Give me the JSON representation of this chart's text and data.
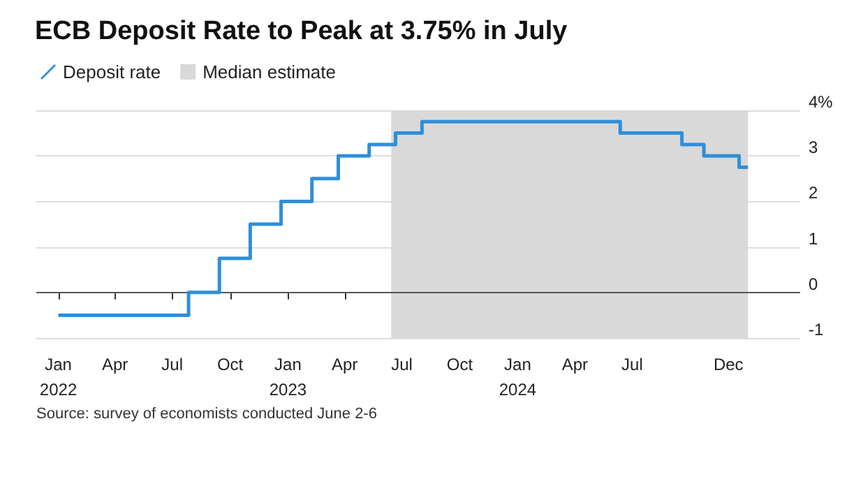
{
  "chart_data": {
    "type": "step",
    "title": "ECB Deposit Rate to Peak at 3.75% in July",
    "annotations": [
      "Source: survey of economists conducted June 2-6"
    ],
    "series": [
      {
        "name": "Deposit rate",
        "color": "#2f8fd8",
        "x": [
          "2022-01-01",
          "2022-07-27",
          "2022-09-14",
          "2022-11-02",
          "2022-12-21",
          "2023-02-08",
          "2023-03-22",
          "2023-05-10",
          "2023-06-21",
          "2023-08-02",
          "2024-06-12",
          "2024-09-18",
          "2024-10-23",
          "2024-12-18",
          "2025-01-01"
        ],
        "values": [
          -0.5,
          0,
          0.75,
          1.5,
          2,
          2.5,
          3,
          3.25,
          3.5,
          3.75,
          3.5,
          3.25,
          3,
          2.75,
          2.75
        ]
      }
    ],
    "bands": [
      {
        "axis": "x",
        "from": "2023-06-14",
        "to": "2025-01-01",
        "label": "Median estimate",
        "color": "#d9d9d9"
      }
    ],
    "ref_lines": [
      {
        "axis": "y",
        "value": 0,
        "color": "#555555"
      }
    ],
    "xlim": [
      "2021-11-27",
      "2025-03-25"
    ],
    "xticks": [
      {
        "value": "2022-01-01",
        "label": "Jan\n2022"
      },
      {
        "value": "2022-04-01",
        "label": "Apr"
      },
      {
        "value": "2022-07-01",
        "label": "Jul"
      },
      {
        "value": "2022-10-01",
        "label": "Oct"
      },
      {
        "value": "2023-01-01",
        "label": "Jan\n2023"
      },
      {
        "value": "2023-04-01",
        "label": "Apr"
      },
      {
        "value": "2023-07-01",
        "label": "Jul"
      },
      {
        "value": "2023-10-01",
        "label": "Oct"
      },
      {
        "value": "2024-01-01",
        "label": "Jan\n2024"
      },
      {
        "value": "2024-04-01",
        "label": "Apr"
      },
      {
        "value": "2024-07-01",
        "label": "Jul"
      },
      {
        "value": "2024-12-01",
        "label": "Dec"
      }
    ],
    "ylim": [
      -1,
      4
    ],
    "yticks": [
      -1,
      0,
      1,
      2,
      3,
      {
        "value": 4,
        "label": "4%"
      }
    ],
    "grid": "y",
    "legend": "top left",
    "marker": "none",
    "line_style": "solid"
  }
}
